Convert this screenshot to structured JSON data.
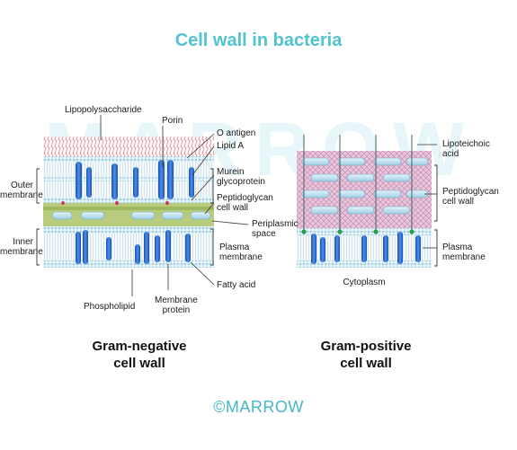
{
  "title": "Cell wall in bacteria",
  "watermark": "MARROW",
  "logo": {
    "symbol": "©",
    "text": "MARROW"
  },
  "colors": {
    "title": "#52c3d3",
    "lps": "#e58f98",
    "lipid_head": "#a8d8e8",
    "protein": "#2f6fd0",
    "peptidoglycan": "#bfe0ef",
    "periplasm": "#a9be6e",
    "gram_positive_mesh": "#c88ab0"
  },
  "gram_negative": {
    "caption_line1": "Gram-negative",
    "caption_line2": "cell wall",
    "labels": {
      "lipopolysaccharide": "Lipopolysaccharide",
      "porin": "Porin",
      "o_antigen": "O antigen",
      "lipid_a": "Lipid A",
      "murein_line1": "Murein",
      "murein_line2": "glycoprotein",
      "pg_line1": "Peptidoglycan",
      "pg_line2": "cell wall",
      "peri_line1": "Periplasmic",
      "peri_line2": "space",
      "pm_line1": "Plasma",
      "pm_line2": "membrane",
      "fatty_acid": "Fatty acid",
      "phospholipid": "Phospholipid",
      "mp_line1": "Membrane",
      "mp_line2": "protein",
      "outer_line1": "Outer",
      "outer_line2": "membrane",
      "inner_line1": "Inner",
      "inner_line2": "membrane"
    }
  },
  "gram_positive": {
    "caption_line1": "Gram-positive",
    "caption_line2": "cell wall",
    "labels": {
      "lta_line1": "Lipoteichoic",
      "lta_line2": "acid",
      "pg_line1": "Peptidoglycan",
      "pg_line2": "cell wall",
      "pm_line1": "Plasma",
      "pm_line2": "membrane",
      "cytoplasm": "Cytoplasm"
    }
  }
}
